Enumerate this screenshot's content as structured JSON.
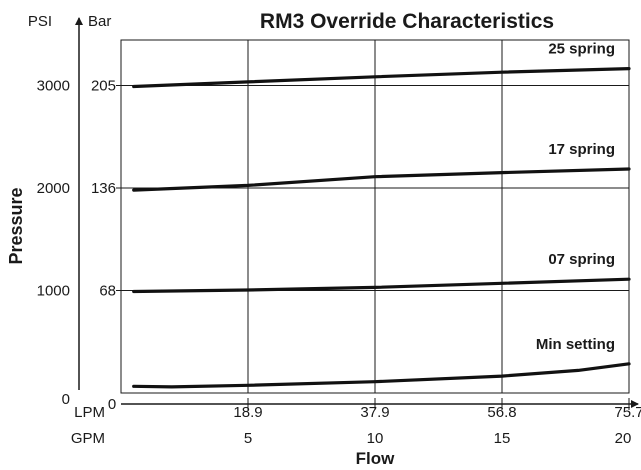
{
  "chart_data": {
    "type": "line",
    "title": "RM3 Override Characteristics",
    "xlabel": "Flow",
    "ylabel": "Pressure",
    "x_unit_primary": "GPM",
    "x_unit_secondary": "LPM",
    "y_unit_left": "PSI",
    "y_unit_right": "Bar",
    "xlim": [
      0,
      20
    ],
    "ylim": [
      0,
      3500
    ],
    "grid": true,
    "gpm_ticks": [
      {
        "value": 0,
        "label": "0"
      },
      {
        "value": 5,
        "label": "5"
      },
      {
        "value": 10,
        "label": "10"
      },
      {
        "value": 15,
        "label": "15"
      },
      {
        "value": 20,
        "label": "20"
      }
    ],
    "lpm_ticks": [
      {
        "value": 0,
        "label": "0"
      },
      {
        "value": 5,
        "label": "18.9"
      },
      {
        "value": 10,
        "label": "37.9"
      },
      {
        "value": 15,
        "label": "56.8"
      },
      {
        "value": 20,
        "label": "75.7"
      }
    ],
    "psi_ticks": [
      {
        "value": 0,
        "label": "0"
      },
      {
        "value": 1000,
        "label": "1000"
      },
      {
        "value": 2000,
        "label": "2000"
      },
      {
        "value": 3000,
        "label": "3000"
      }
    ],
    "bar_ticks": [
      {
        "value": 1000,
        "label": "68"
      },
      {
        "value": 2000,
        "label": "136"
      },
      {
        "value": 3000,
        "label": "205"
      }
    ],
    "series": [
      {
        "name": "25 spring",
        "x": [
          0.5,
          5,
          10,
          15,
          20
        ],
        "y": [
          2990,
          3035,
          3085,
          3130,
          3165
        ]
      },
      {
        "name": "17 spring",
        "x": [
          0.5,
          5,
          10,
          15,
          20
        ],
        "y": [
          1980,
          2025,
          2110,
          2150,
          2185
        ]
      },
      {
        "name": "07 spring",
        "x": [
          0.5,
          5,
          10,
          15,
          20
        ],
        "y": [
          990,
          1005,
          1030,
          1070,
          1110
        ]
      },
      {
        "name": "Min setting",
        "x": [
          0.5,
          2,
          5,
          10,
          15,
          18,
          20
        ],
        "y": [
          65,
          60,
          75,
          110,
          165,
          220,
          285
        ]
      }
    ]
  }
}
